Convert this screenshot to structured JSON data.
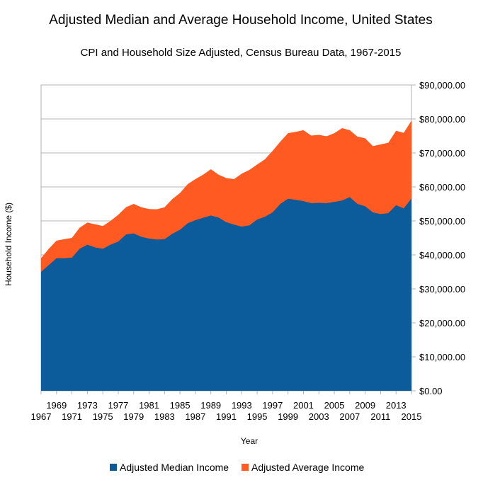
{
  "chart_data": {
    "type": "area",
    "title": "Adjusted Median and Average Household Income, United States",
    "subtitle": "CPI and Household Size Adjusted, Census Bureau Data, 1967-2015",
    "xlabel": "Year",
    "ylabel": "Household Income ($)",
    "ylim": [
      0,
      90000
    ],
    "y_ticks": [
      "$0.00",
      "$10,000.00",
      "$20,000.00",
      "$30,000.00",
      "$40,000.00",
      "$50,000.00",
      "$60,000.00",
      "$70,000.00",
      "$80,000.00",
      "$90,000.00"
    ],
    "y_axis_side": "right",
    "x_ticks_upper": [
      "1969",
      "1973",
      "1977",
      "1981",
      "1985",
      "1989",
      "1993",
      "1997",
      "2001",
      "2005",
      "2009",
      "2013"
    ],
    "x_ticks_lower": [
      "1967",
      "1971",
      "1975",
      "1979",
      "1983",
      "1987",
      "1991",
      "1995",
      "1999",
      "2003",
      "2007",
      "2011",
      "2015"
    ],
    "grid": true,
    "legend_position": "bottom",
    "x": [
      1967,
      1968,
      1969,
      1970,
      1971,
      1972,
      1973,
      1974,
      1975,
      1976,
      1977,
      1978,
      1979,
      1980,
      1981,
      1982,
      1983,
      1984,
      1985,
      1986,
      1987,
      1988,
      1989,
      1990,
      1991,
      1992,
      1993,
      1994,
      1995,
      1996,
      1997,
      1998,
      1999,
      2000,
      2001,
      2002,
      2003,
      2004,
      2005,
      2006,
      2007,
      2008,
      2009,
      2010,
      2011,
      2012,
      2013,
      2014,
      2015
    ],
    "series": [
      {
        "name": "Adjusted Median Income",
        "color": "#0c5c9c",
        "values": [
          35000,
          37000,
          39000,
          39000,
          39200,
          41800,
          43000,
          42200,
          41800,
          43000,
          43900,
          46000,
          46300,
          45300,
          44800,
          44500,
          44600,
          46200,
          47400,
          49300,
          50200,
          50900,
          51600,
          51000,
          49600,
          48900,
          48300,
          48700,
          50400,
          51200,
          52500,
          55000,
          56500,
          56200,
          55800,
          55200,
          55300,
          55200,
          55600,
          56000,
          57000,
          55000,
          54300,
          52500,
          52000,
          52300,
          54600,
          53700,
          56600
        ]
      },
      {
        "name": "Adjusted Average Income",
        "color": "#ff5a22",
        "values": [
          39000,
          41800,
          44200,
          44600,
          45000,
          48000,
          49500,
          49000,
          48500,
          50000,
          51800,
          54000,
          55000,
          54000,
          53500,
          53400,
          54000,
          56400,
          58200,
          60800,
          62300,
          63600,
          65200,
          63600,
          62600,
          62300,
          63900,
          65000,
          66600,
          68100,
          70600,
          73300,
          75800,
          76200,
          76700,
          75100,
          75300,
          74900,
          75800,
          77300,
          76700,
          74800,
          74300,
          72000,
          72500,
          73000,
          76500,
          75900,
          79500
        ]
      }
    ]
  }
}
